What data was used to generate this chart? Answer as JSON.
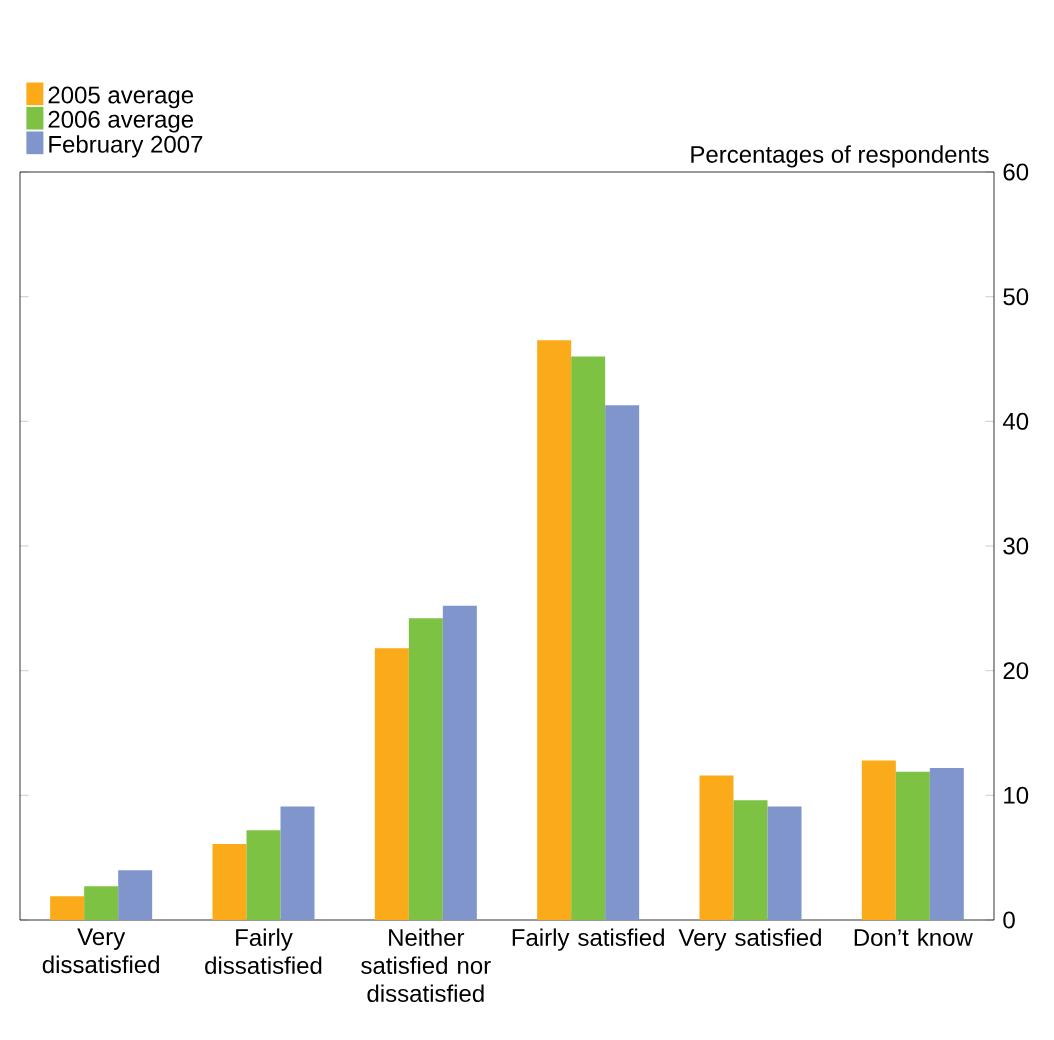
{
  "chart_data": {
    "type": "bar",
    "ylabel": "Percentages of respondents",
    "categories": [
      "Very dissatisfied",
      "Fairly dissatisfied",
      "Neither satisfied nor dissatisfied",
      "Fairly satisfied",
      "Very satisfied",
      "Don’t know"
    ],
    "series": [
      {
        "name": "2005 average",
        "color": "#fbaa19",
        "values": [
          1.9,
          6.1,
          21.8,
          46.5,
          11.6,
          12.8
        ]
      },
      {
        "name": "2006 average",
        "color": "#7dc242",
        "values": [
          2.7,
          7.2,
          24.2,
          45.2,
          9.6,
          11.9
        ]
      },
      {
        "name": "February 2007",
        "color": "#7f95cc",
        "values": [
          4.0,
          9.1,
          25.2,
          41.3,
          9.1,
          12.2
        ]
      }
    ],
    "ylim": [
      0,
      60
    ],
    "yticks": [
      0,
      10,
      20,
      30,
      40,
      50,
      60
    ],
    "legend": "top left"
  }
}
